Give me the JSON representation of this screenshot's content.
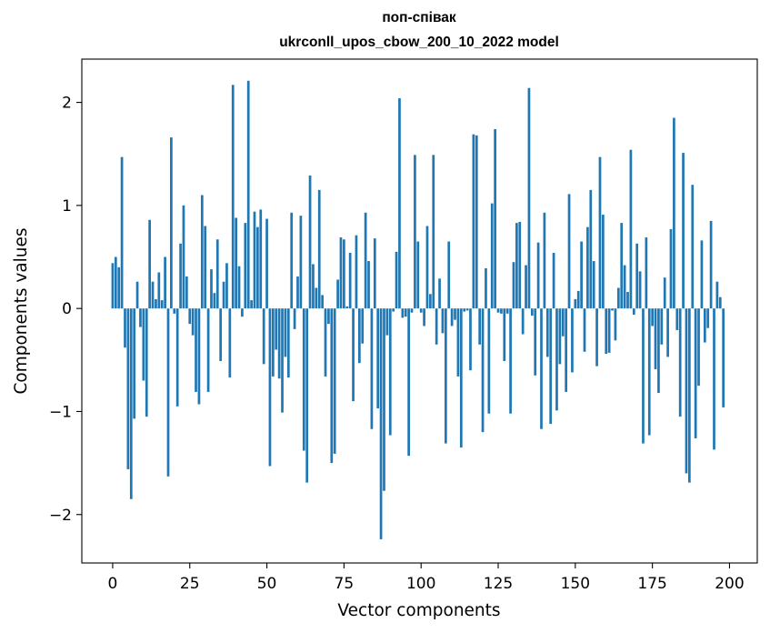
{
  "chart_data": {
    "type": "bar",
    "title": "поп-співак",
    "subtitle": "ukrconll_upos_cbow_200_10_2022 model",
    "xlabel": "Vector components",
    "ylabel": "Components values",
    "xlim": [
      -10,
      209
    ],
    "ylim": [
      -2.47,
      2.42
    ],
    "xticks": [
      0,
      25,
      50,
      75,
      100,
      125,
      150,
      175,
      200
    ],
    "xtick_labels": [
      "0",
      "25",
      "50",
      "75",
      "100",
      "125",
      "150",
      "175",
      "200"
    ],
    "yticks": [
      -2,
      -1,
      0,
      1,
      2
    ],
    "ytick_labels": [
      "−2",
      "−1",
      "0",
      "1",
      "2"
    ],
    "grid": false,
    "bar_color": "#1f77b4",
    "series": [
      {
        "values": [
          0.44,
          0.5,
          0.4,
          1.47,
          -0.38,
          -1.56,
          -1.85,
          -1.07,
          0.26,
          -0.18,
          -0.7,
          -1.05,
          0.86,
          0.26,
          0.09,
          0.35,
          0.08,
          0.5,
          -1.63,
          1.66,
          -0.05,
          -0.95,
          0.63,
          1.0,
          0.31,
          -0.15,
          -0.26,
          -0.81,
          -0.93,
          1.1,
          0.8,
          -0.81,
          0.38,
          0.15,
          0.67,
          -0.51,
          0.26,
          0.44,
          -0.67,
          2.17,
          0.88,
          0.41,
          -0.08,
          0.83,
          2.21,
          0.08,
          0.94,
          0.79,
          0.96,
          -0.54,
          0.87,
          -1.53,
          -0.66,
          -0.4,
          -0.68,
          -1.01,
          -0.47,
          -0.67,
          0.93,
          -0.2,
          0.31,
          0.9,
          -1.38,
          -1.69,
          1.29,
          0.43,
          0.2,
          1.15,
          0.13,
          -0.66,
          -0.15,
          -1.5,
          -1.41,
          0.28,
          0.69,
          0.67,
          0.02,
          0.54,
          -0.9,
          0.71,
          -0.53,
          -0.34,
          0.93,
          0.46,
          -1.17,
          0.68,
          -0.97,
          -2.24,
          -1.77,
          -0.26,
          -1.23,
          -0.03,
          0.55,
          2.04,
          -0.09,
          -0.08,
          -1.43,
          -0.04,
          1.49,
          0.65,
          -0.04,
          -0.17,
          0.8,
          0.14,
          1.49,
          -0.35,
          0.29,
          -0.24,
          -1.31,
          0.65,
          -0.17,
          -0.11,
          -0.66,
          -1.35,
          -0.03,
          -0.02,
          -0.6,
          1.69,
          1.68,
          -0.35,
          -1.2,
          0.39,
          -1.02,
          1.02,
          1.74,
          -0.04,
          -0.05,
          -0.51,
          -0.05,
          -1.02,
          0.45,
          0.83,
          0.84,
          -0.25,
          0.42,
          2.14,
          -0.07,
          -0.65,
          0.64,
          -1.17,
          0.93,
          -0.47,
          -1.12,
          0.54,
          -0.99,
          -0.54,
          -0.27,
          -0.81,
          1.11,
          -0.62,
          0.09,
          0.17,
          0.65,
          -0.42,
          0.79,
          1.15,
          0.46,
          -0.56,
          1.47,
          0.91,
          -0.44,
          -0.43,
          -0.02,
          -0.31,
          0.2,
          0.83,
          0.42,
          0.16,
          1.54,
          -0.06,
          0.63,
          0.36,
          -1.31,
          0.69,
          -1.23,
          -0.17,
          -0.59,
          -0.82,
          -0.35,
          0.3,
          -0.47,
          0.77,
          1.85,
          -0.21,
          -1.05,
          1.51,
          -1.6,
          -1.69,
          1.2,
          -1.26,
          -0.75,
          0.66,
          -0.33,
          -0.19,
          0.85,
          -1.37,
          0.26,
          0.11,
          -0.96
        ]
      }
    ]
  }
}
